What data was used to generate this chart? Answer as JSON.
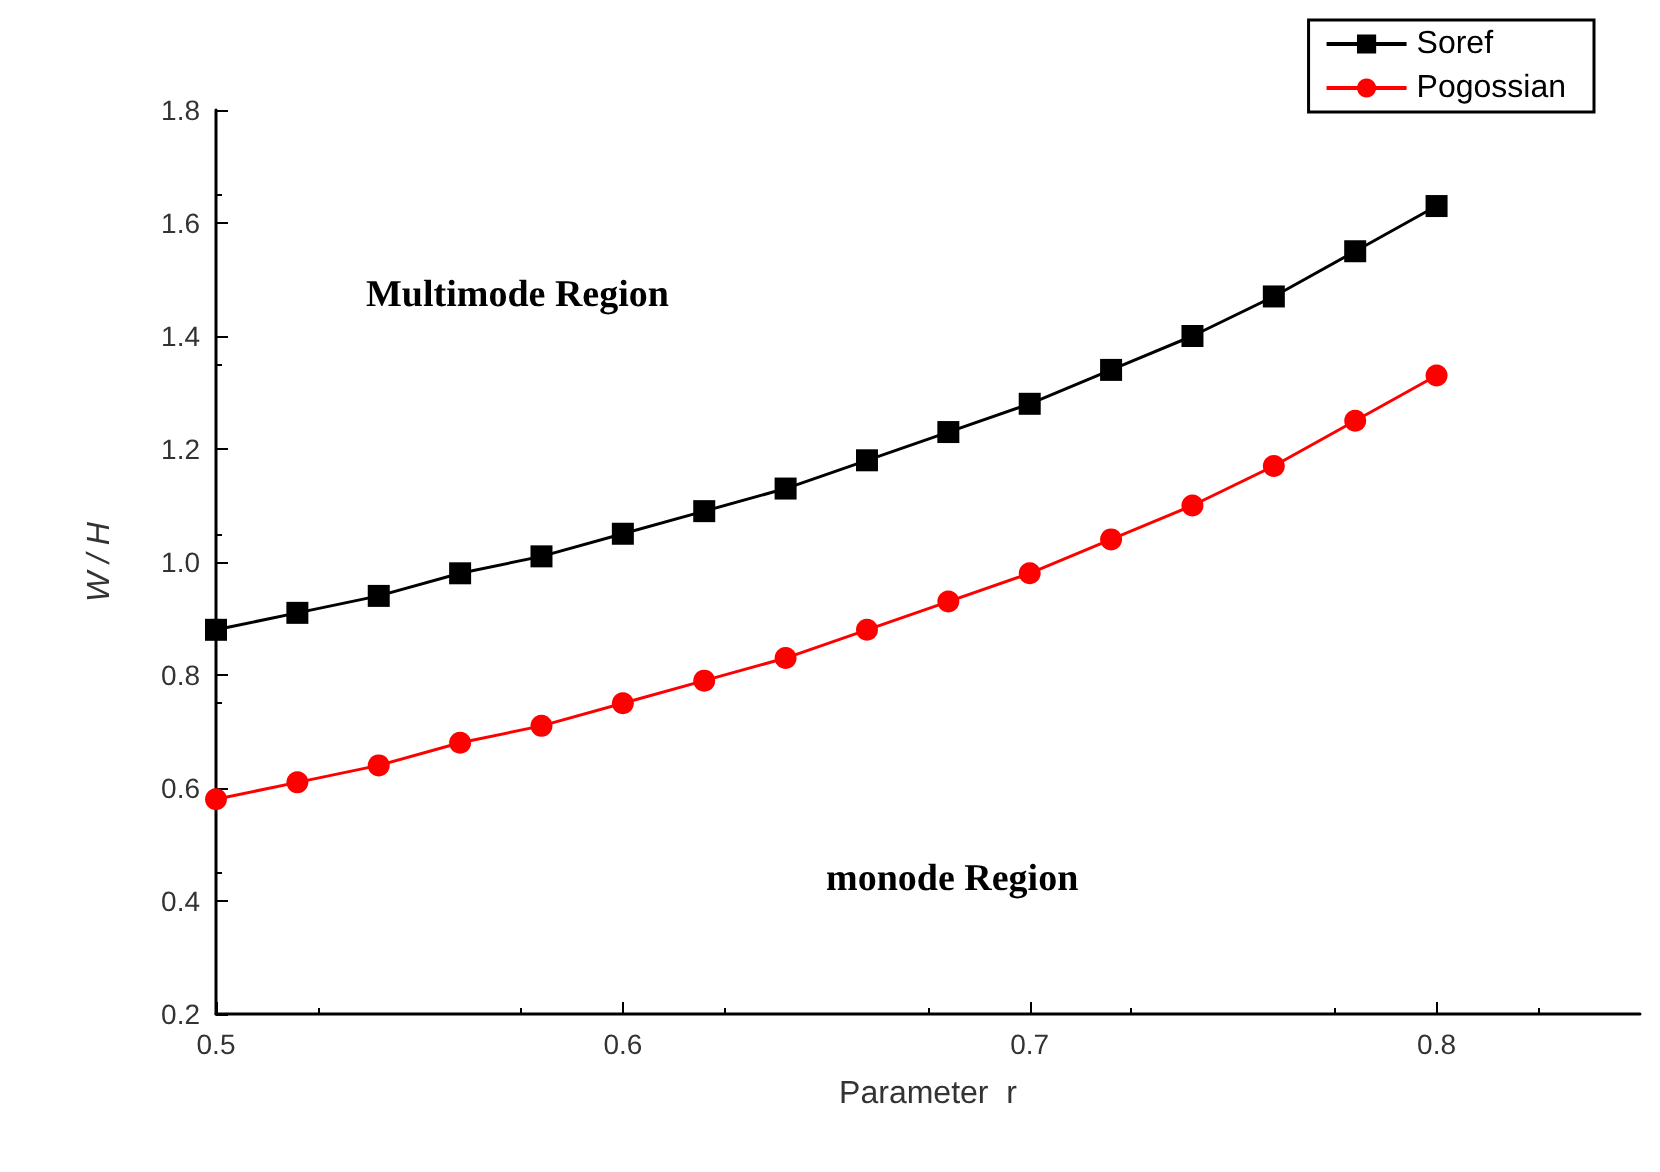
{
  "chart_data": {
    "type": "line",
    "xlabel": "Parameter  r",
    "ylabel": "W / H",
    "x": [
      0.5,
      0.52,
      0.54,
      0.56,
      0.58,
      0.6,
      0.62,
      0.64,
      0.66,
      0.68,
      0.7,
      0.72,
      0.74,
      0.76,
      0.78,
      0.8
    ],
    "series": [
      {
        "name": "Soref",
        "color": "#000000",
        "marker": "square",
        "values": [
          0.88,
          0.91,
          0.94,
          0.98,
          1.01,
          1.05,
          1.09,
          1.13,
          1.18,
          1.23,
          1.28,
          1.34,
          1.4,
          1.47,
          1.55,
          1.63
        ]
      },
      {
        "name": "Pogossian",
        "color": "#ff0000",
        "marker": "circle",
        "values": [
          0.58,
          0.61,
          0.64,
          0.68,
          0.71,
          0.75,
          0.79,
          0.83,
          0.88,
          0.93,
          0.98,
          1.04,
          1.1,
          1.17,
          1.25,
          1.33
        ]
      }
    ],
    "xlim": [
      0.5,
      0.85
    ],
    "xticks": [
      0.5,
      0.6,
      0.7,
      0.8
    ],
    "ylim": [
      0.2,
      1.8
    ],
    "yticks": [
      0.2,
      0.4,
      0.6,
      0.8,
      {
        "value": 1,
        "label": "1.0"
      },
      1.2,
      1.4,
      1.6,
      1.8
    ],
    "annotations": [
      "Multimode Region",
      "monode Region"
    ],
    "legend": "top right",
    "grid": false,
    "line_style": "solid"
  }
}
